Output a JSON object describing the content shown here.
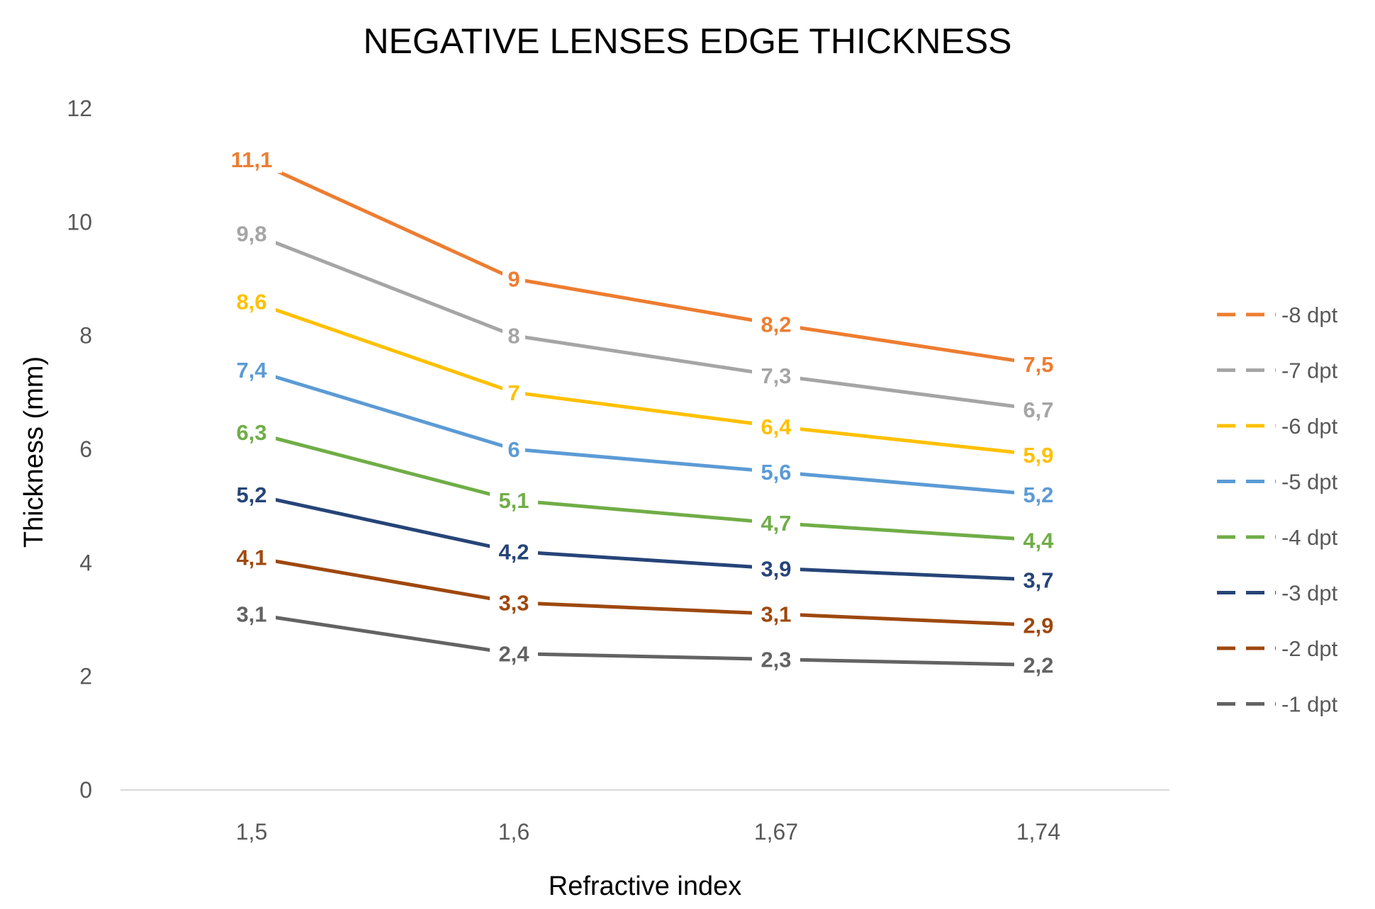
{
  "chart_data": {
    "type": "line",
    "title": "NEGATIVE LENSES EDGE THICKNESS",
    "xlabel": "Refractive index",
    "ylabel": "Thickness (mm)",
    "categories": [
      "1,5",
      "1,6",
      "1,67",
      "1,74"
    ],
    "ylim": [
      0,
      12
    ],
    "yticks": [
      0,
      2,
      4,
      6,
      8,
      10,
      12
    ],
    "ytick_labels": [
      "0",
      "2",
      "4",
      "6",
      "8",
      "10",
      "12"
    ],
    "grid": false,
    "legend_position": "right",
    "series": [
      {
        "name": "-8 dpt",
        "color": "#ED7D31",
        "values": [
          11.1,
          9,
          8.2,
          7.5
        ],
        "labels": [
          "11,1",
          "9",
          "8,2",
          "7,5"
        ]
      },
      {
        "name": "-7 dpt",
        "color": "#A5A5A5",
        "values": [
          9.8,
          8,
          7.3,
          6.7
        ],
        "labels": [
          "9,8",
          "8",
          "7,3",
          "6,7"
        ]
      },
      {
        "name": "-6 dpt",
        "color": "#FFC000",
        "values": [
          8.6,
          7,
          6.4,
          5.9
        ],
        "labels": [
          "8,6",
          "7",
          "6,4",
          "5,9"
        ]
      },
      {
        "name": "-5 dpt",
        "color": "#5B9BD5",
        "values": [
          7.4,
          6,
          5.6,
          5.2
        ],
        "labels": [
          "7,4",
          "6",
          "5,6",
          "5,2"
        ]
      },
      {
        "name": "-4 dpt",
        "color": "#70AD47",
        "values": [
          6.3,
          5.1,
          4.7,
          4.4
        ],
        "labels": [
          "6,3",
          "5,1",
          "4,7",
          "4,4"
        ]
      },
      {
        "name": "-3 dpt",
        "color": "#264478",
        "values": [
          5.2,
          4.2,
          3.9,
          3.7
        ],
        "labels": [
          "5,2",
          "4,2",
          "3,9",
          "3,7"
        ]
      },
      {
        "name": "-2 dpt",
        "color": "#9E480E",
        "values": [
          4.1,
          3.3,
          3.1,
          2.9
        ],
        "labels": [
          "4,1",
          "3,3",
          "3,1",
          "2,9"
        ]
      },
      {
        "name": "-1 dpt",
        "color": "#636363",
        "values": [
          3.1,
          2.4,
          2.3,
          2.2
        ],
        "labels": [
          "3,1",
          "2,4",
          "2,3",
          "2,2"
        ]
      }
    ]
  }
}
